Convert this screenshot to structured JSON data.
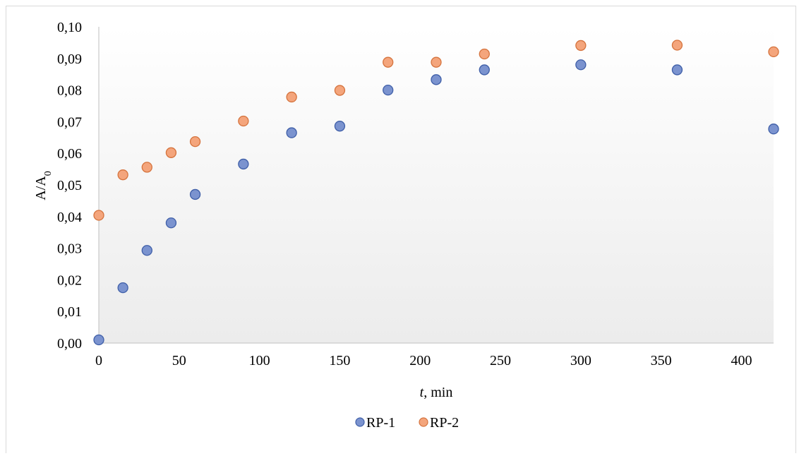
{
  "chart_data": {
    "type": "scatter",
    "title": "",
    "xlabel_italic": "t",
    "xlabel_rest": ", min",
    "ylabel_main": "A/A",
    "ylabel_sub": "0",
    "xlim": [
      0,
      420
    ],
    "ylim": [
      0,
      0.1
    ],
    "x_ticks": [
      {
        "value": 0,
        "label": "0"
      },
      {
        "value": 50,
        "label": "50"
      },
      {
        "value": 100,
        "label": "100"
      },
      {
        "value": 150,
        "label": "150"
      },
      {
        "value": 200,
        "label": "200"
      },
      {
        "value": 250,
        "label": "250"
      },
      {
        "value": 300,
        "label": "300"
      },
      {
        "value": 350,
        "label": "350"
      },
      {
        "value": 400,
        "label": "400"
      }
    ],
    "y_ticks": [
      {
        "value": 0.0,
        "label": "0,00"
      },
      {
        "value": 0.01,
        "label": "0,01"
      },
      {
        "value": 0.02,
        "label": "0,02"
      },
      {
        "value": 0.03,
        "label": "0,03"
      },
      {
        "value": 0.04,
        "label": "0,04"
      },
      {
        "value": 0.05,
        "label": "0,05"
      },
      {
        "value": 0.06,
        "label": "0,06"
      },
      {
        "value": 0.07,
        "label": "0,07"
      },
      {
        "value": 0.08,
        "label": "0,08"
      },
      {
        "value": 0.09,
        "label": "0,09"
      },
      {
        "value": 0.1,
        "label": "0,10"
      }
    ],
    "grid": false,
    "legend_position": "bottom",
    "series": [
      {
        "name": "RP-1",
        "fill": "#7b93cf",
        "stroke": "#3f5fa8",
        "points": [
          {
            "x": 0,
            "y": 0.001
          },
          {
            "x": 15,
            "y": 0.0175
          },
          {
            "x": 30,
            "y": 0.0293
          },
          {
            "x": 45,
            "y": 0.038
          },
          {
            "x": 60,
            "y": 0.047
          },
          {
            "x": 90,
            "y": 0.0566
          },
          {
            "x": 120,
            "y": 0.0665
          },
          {
            "x": 150,
            "y": 0.0686
          },
          {
            "x": 180,
            "y": 0.08
          },
          {
            "x": 210,
            "y": 0.0833
          },
          {
            "x": 240,
            "y": 0.0864
          },
          {
            "x": 300,
            "y": 0.088
          },
          {
            "x": 360,
            "y": 0.0864
          },
          {
            "x": 420,
            "y": 0.0677
          }
        ]
      },
      {
        "name": "RP-2",
        "fill": "#f4a57c",
        "stroke": "#d5733d",
        "points": [
          {
            "x": 0,
            "y": 0.0404
          },
          {
            "x": 15,
            "y": 0.0532
          },
          {
            "x": 30,
            "y": 0.0556
          },
          {
            "x": 45,
            "y": 0.0602
          },
          {
            "x": 60,
            "y": 0.0637
          },
          {
            "x": 90,
            "y": 0.0702
          },
          {
            "x": 120,
            "y": 0.0778
          },
          {
            "x": 150,
            "y": 0.0799
          },
          {
            "x": 180,
            "y": 0.0888
          },
          {
            "x": 210,
            "y": 0.0888
          },
          {
            "x": 240,
            "y": 0.0914
          },
          {
            "x": 300,
            "y": 0.0941
          },
          {
            "x": 360,
            "y": 0.0942
          },
          {
            "x": 420,
            "y": 0.0921
          }
        ]
      }
    ]
  }
}
